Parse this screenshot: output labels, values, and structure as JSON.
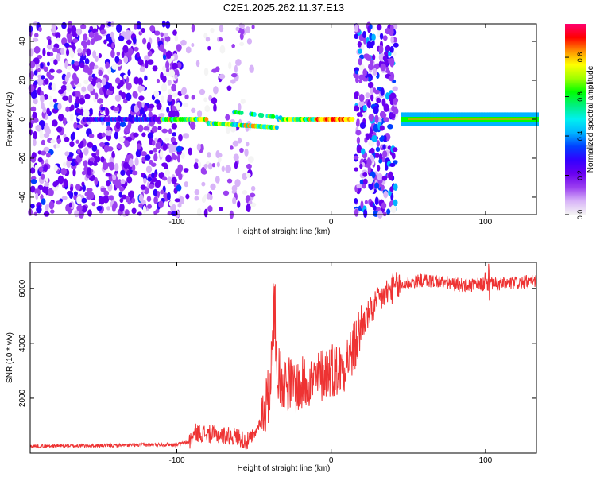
{
  "title": "C2E1.2025.262.11.37.E13",
  "chart_data": [
    {
      "type": "heatmap",
      "xlabel": "Height of straight line (km)",
      "ylabel": "Frequency (Hz)",
      "xlim": [
        -195,
        133
      ],
      "ylim": [
        -49,
        49
      ],
      "xticks": [
        -100,
        0,
        100
      ],
      "yticks": [
        -40,
        -20,
        0,
        20,
        40
      ],
      "colorbar": {
        "label": "Normalized spectral amplitude",
        "range": [
          0,
          0.97
        ],
        "ticks": [
          0.0,
          0.2,
          0.4,
          0.6,
          0.8
        ],
        "colors": [
          "#f4f4f4",
          "#d8b4f8",
          "#9b3ff0",
          "#6a00f0",
          "#3300ff",
          "#0040ff",
          "#00b4ff",
          "#00f0f0",
          "#00f080",
          "#00ff00",
          "#a0ff00",
          "#ffff00",
          "#ff9000",
          "#ff0000",
          "#ff0070"
        ]
      },
      "features": [
        {
          "name": "noise-region",
          "x_range": [
            -195,
            -97
          ],
          "freq_range": [
            -49,
            49
          ],
          "level": 0.15
        },
        {
          "name": "sparse-noise",
          "x_range": [
            -97,
            -50
          ],
          "freq_range": [
            -49,
            49
          ],
          "level": 0.05
        },
        {
          "name": "signal-band",
          "x_range": [
            -160,
            15
          ],
          "freq_center": [
            0,
            -2,
            -4,
            2,
            0
          ],
          "level": 0.6
        },
        {
          "name": "noise-stripe",
          "x_range": [
            16,
            42
          ],
          "freq_range": [
            -49,
            49
          ],
          "level": 0.2
        },
        {
          "name": "strong-carrier",
          "x_range": [
            45,
            133
          ],
          "freq_center": [
            0
          ],
          "level": 0.8
        }
      ]
    },
    {
      "type": "line",
      "xlabel": "Height of straight line (km)",
      "ylabel": "SNR (10 * v/v)",
      "xlim": [
        -195,
        133
      ],
      "ylim": [
        0,
        6950
      ],
      "xticks": [
        -100,
        0,
        100
      ],
      "yticks": [
        2000,
        4000,
        6000
      ],
      "color": "#ee3333",
      "series": [
        {
          "name": "SNR",
          "x": [
            -195,
            -180,
            -160,
            -140,
            -120,
            -100,
            -92,
            -88,
            -80,
            -70,
            -60,
            -55,
            -50,
            -45,
            -40,
            -37,
            -34,
            -30,
            -25,
            -20,
            -15,
            -10,
            -5,
            0,
            5,
            10,
            15,
            20,
            25,
            30,
            35,
            40,
            45,
            50,
            60,
            70,
            80,
            90,
            100,
            110,
            120,
            133
          ],
          "y": [
            250,
            260,
            270,
            280,
            300,
            320,
            400,
            750,
            700,
            650,
            600,
            400,
            600,
            1300,
            2200,
            4800,
            2800,
            2600,
            2500,
            2400,
            2700,
            2600,
            2900,
            3100,
            3000,
            3400,
            3800,
            4700,
            5100,
            5500,
            5800,
            6000,
            6100,
            6200,
            6300,
            6250,
            6150,
            6100,
            6150,
            6150,
            6200,
            6250
          ]
        }
      ]
    }
  ]
}
